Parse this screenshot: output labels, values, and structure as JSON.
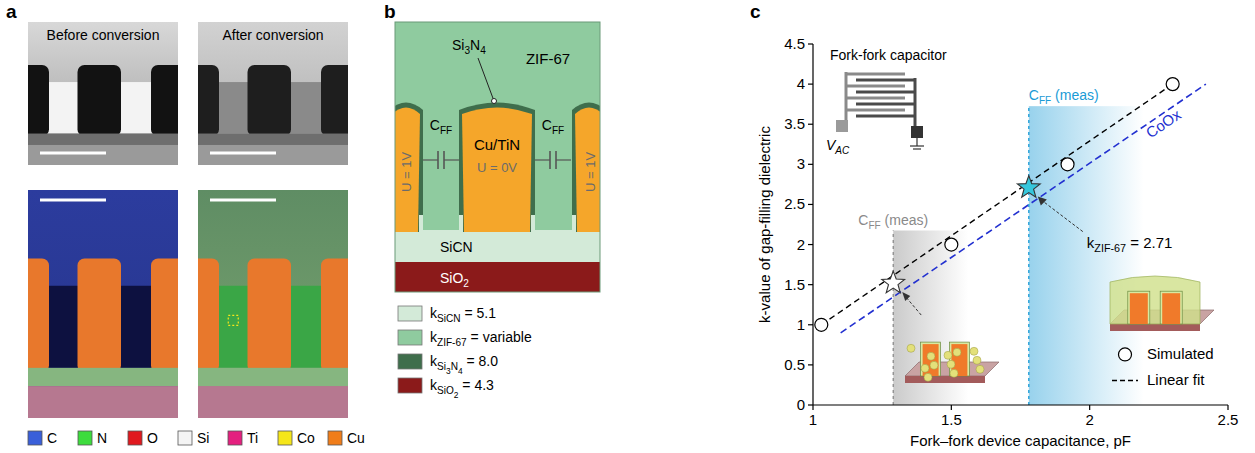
{
  "panel_a": {
    "letter": "a",
    "images": [
      {
        "title": "Before conversion"
      },
      {
        "title": "After conversion"
      }
    ],
    "legend": [
      {
        "label": "C",
        "color": "#3a5fd9"
      },
      {
        "label": "N",
        "color": "#3ddc3d"
      },
      {
        "label": "O",
        "color": "#e0191f"
      },
      {
        "label": "Si",
        "color": "#f4f4f4"
      },
      {
        "label": "Ti",
        "color": "#e4207f"
      },
      {
        "label": "Co",
        "color": "#f5e61a"
      },
      {
        "label": "Cu",
        "color": "#f07d1a"
      }
    ]
  },
  "panel_b": {
    "letter": "b",
    "labels": {
      "zif": [
        "ZIF-67"
      ],
      "si3n4": [
        "Si",
        {
          "sub": "3"
        },
        "N",
        {
          "sub": "4"
        }
      ],
      "metal": [
        "Cu/TiN"
      ],
      "sicn": [
        "SiCN"
      ],
      "sio2": [
        "SiO",
        {
          "sub": "2"
        }
      ],
      "center_potential": [
        "U = 0V"
      ],
      "side_potential": [
        "U = 1V"
      ],
      "capacitance": [
        "C",
        {
          "sub": "FF"
        }
      ]
    },
    "legend": [
      {
        "label": [
          "k",
          {
            "sub": "SiCN"
          },
          " = 5.1"
        ],
        "color": "#d3ead8"
      },
      {
        "label": [
          "k",
          {
            "sub": "ZIF-67"
          },
          " = variable"
        ],
        "color": "#8fcb9f"
      },
      {
        "label": [
          "k",
          {
            "sub": "Si"
          },
          {
            "sub2": "3"
          },
          {
            "sub": "N"
          },
          {
            "sub2": "4"
          },
          " = 8.0"
        ],
        "color": "#3f6e4c"
      },
      {
        "label": [
          "k",
          {
            "sub": "SiO"
          },
          {
            "sub2": "2"
          },
          " = 4.3"
        ],
        "color": "#8b1a1a"
      }
    ]
  },
  "panel_c": {
    "letter": "c",
    "inset": {
      "title": "Fork-fork capacitor",
      "source": [
        "V",
        {
          "sub": "AC"
        }
      ]
    }
  },
  "chart_data": {
    "type": "scatter",
    "x_label": "Fork–fork device capacitance, pF",
    "y_label": "k-value of gap-filling dielectric",
    "xlim": [
      1,
      2.5
    ],
    "xticks": [
      1,
      1.5,
      2,
      2.5
    ],
    "ylim": [
      0,
      4.5
    ],
    "yticks": [
      0,
      0.5,
      1,
      1.5,
      2,
      2.5,
      3,
      3.5,
      4,
      4.5
    ],
    "legend": "lower right",
    "series": [
      {
        "name": "Simulated",
        "type": "scatter",
        "marker": "circle",
        "color": "#ffffff",
        "x": [
          1.03,
          1.5,
          1.92,
          2.3
        ],
        "values": [
          1,
          2,
          3,
          4
        ]
      },
      {
        "name": "Linear fit",
        "type": "line",
        "line_style": "dashed",
        "color": "#000000",
        "x": [
          1.03,
          2.3
        ],
        "values": [
          1,
          4
        ]
      }
    ],
    "reference_lines": [
      {
        "label": "CoOx",
        "color": "#2230d0",
        "line_style": "dashed",
        "x": [
          1.1,
          2.42
        ],
        "values": [
          0.9,
          4.0
        ]
      }
    ],
    "measurements": [
      {
        "label": [
          "C",
          {
            "sub": "FF"
          },
          " (meas)"
        ],
        "x": 1.29,
        "y": 1.52,
        "color": "#ffffff",
        "label_y": 2.25
      },
      {
        "label": [
          "C",
          {
            "sub": "FF"
          },
          " (meas)"
        ],
        "x": 1.78,
        "y": 2.71,
        "color": "#35c7dc",
        "label_y": 3.8,
        "annotation": [
          "k",
          {
            "sub": "ZIF-67"
          },
          " = 2.71"
        ]
      }
    ]
  }
}
